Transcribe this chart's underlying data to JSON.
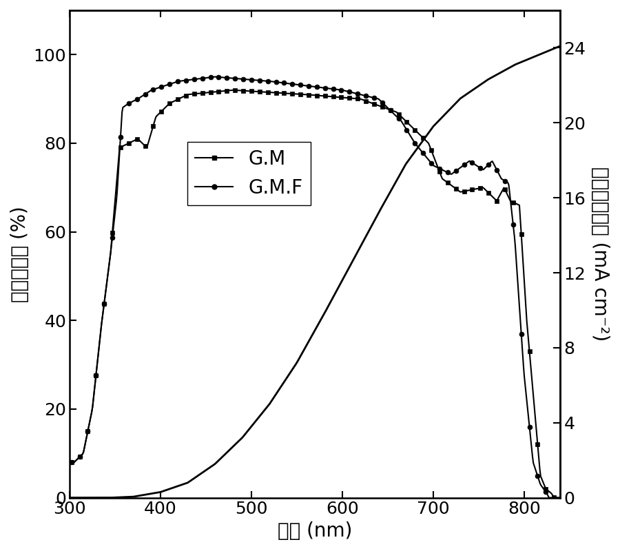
{
  "xlabel": "波长 (nm)",
  "ylabel_left": "外量子效率 (%)",
  "ylabel_right": "积分电流密度 (mA cm⁻²)",
  "xlim": [
    300,
    840
  ],
  "ylim_left": [
    0,
    110
  ],
  "ylim_right": [
    0,
    26
  ],
  "yticks_left": [
    0,
    20,
    40,
    60,
    80,
    100
  ],
  "yticks_right": [
    0,
    4,
    8,
    12,
    16,
    20,
    24
  ],
  "xticks": [
    300,
    400,
    500,
    600,
    700,
    800
  ],
  "legend_labels": [
    "G.M",
    "G.M.F"
  ],
  "background_color": "#ffffff",
  "line_color": "#000000",
  "marker_square": "s",
  "marker_circle": "o",
  "markersize": 5,
  "linewidth": 1.5,
  "integrated_linewidth": 2.0,
  "font_size_labels": 20,
  "font_size_ticks": 18,
  "font_size_legend": 20
}
